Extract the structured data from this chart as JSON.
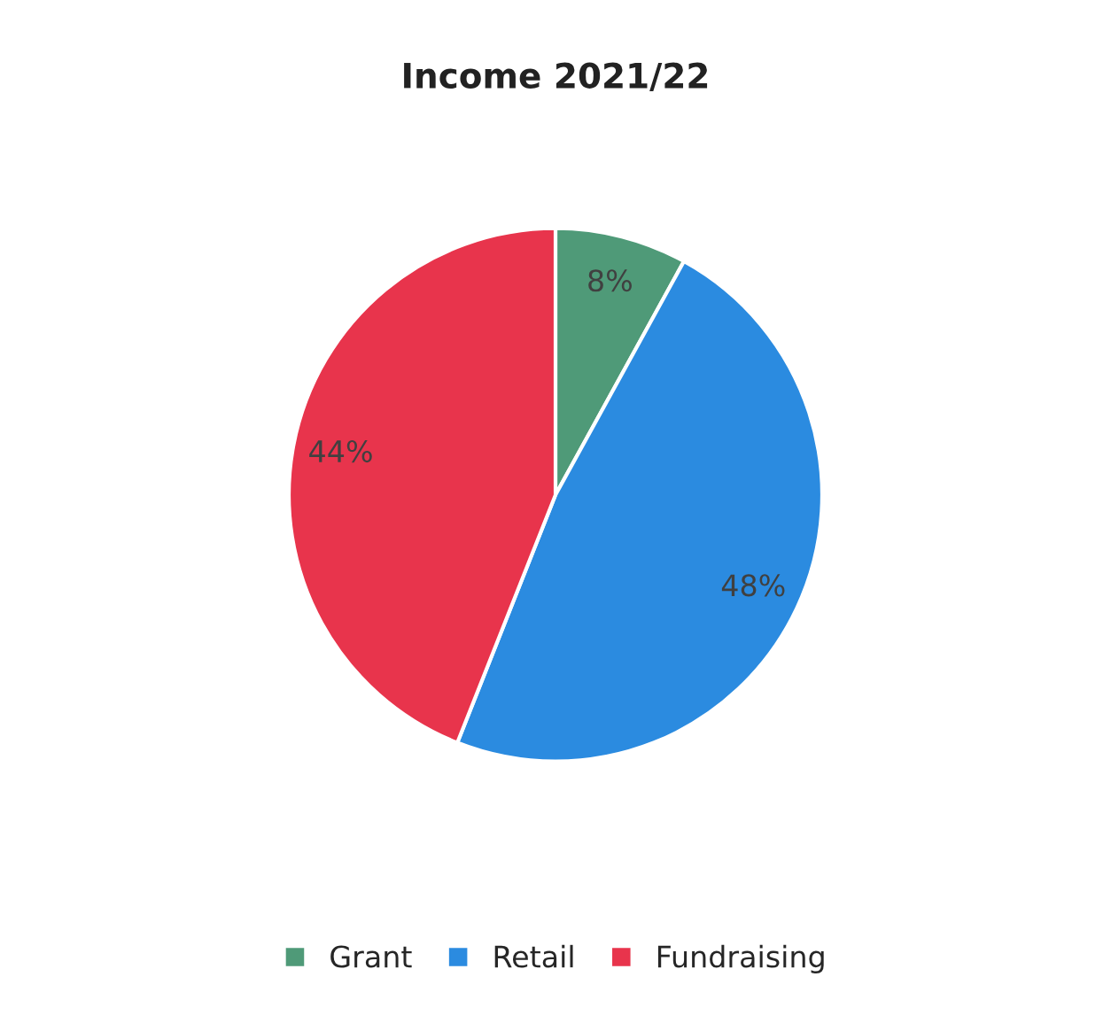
{
  "chart_data": {
    "type": "pie",
    "title": "Income 2021/22",
    "categories": [
      "Grant",
      "Retail",
      "Fundraising"
    ],
    "values": [
      8,
      48,
      44
    ],
    "colors": [
      "#4f9a78",
      "#2b8be0",
      "#e8344c"
    ],
    "value_labels": [
      "8%",
      "48%",
      "44%"
    ],
    "legend": "bottom"
  }
}
